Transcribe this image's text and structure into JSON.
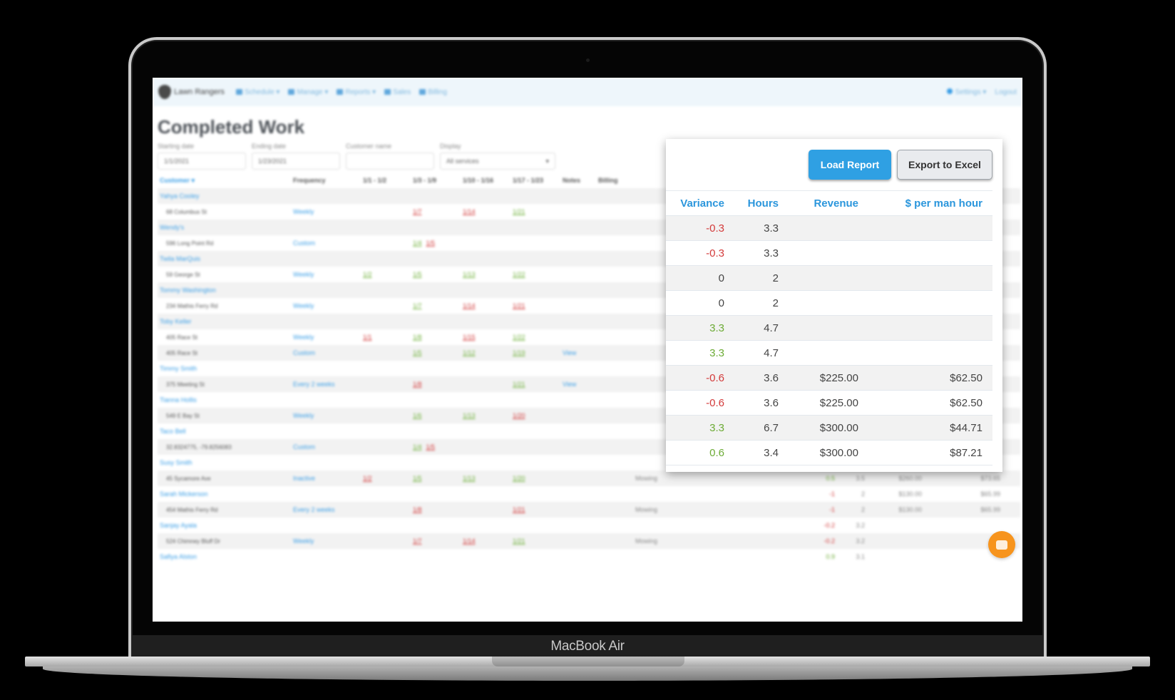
{
  "device": {
    "label": "MacBook Air"
  },
  "nav": {
    "brand": "Lawn Rangers",
    "items": [
      {
        "label": "Schedule ▾",
        "icon": "calendar-icon"
      },
      {
        "label": "Manage ▾",
        "icon": "user-icon"
      },
      {
        "label": "Reports ▾",
        "icon": "pie-chart-icon"
      },
      {
        "label": "Sales",
        "icon": "eye-icon"
      },
      {
        "label": "Billing",
        "icon": "credit-card-icon"
      }
    ],
    "settings": "Settings ▾",
    "logout": "Logout"
  },
  "page": {
    "title": "Completed Work",
    "filters": {
      "start_label": "Starting date",
      "start_value": "1/1/2021",
      "end_label": "Ending date",
      "end_value": "1/23/2021",
      "customer_label": "Customer name",
      "customer_value": "",
      "display_label": "Display",
      "display_value": "All services"
    }
  },
  "table": {
    "headers": {
      "customer": "Customer ▾",
      "frequency": "Frequency",
      "w1": "1/1 - 1/2",
      "w2": "1/3 - 1/9",
      "w3": "1/10 - 1/16",
      "w4": "1/17 - 1/23",
      "notes": "Notes",
      "billing": "Billing"
    },
    "rows": [
      {
        "type": "customer",
        "name": "Yahya Cooley"
      },
      {
        "type": "property",
        "addr": "68 Columbus St",
        "freq": "Weekly",
        "w2": "1/7",
        "w2c": "red",
        "w3": "1/14",
        "w3c": "red",
        "w4": "1/21",
        "w4c": "grn"
      },
      {
        "type": "customer",
        "name": "Wendy's"
      },
      {
        "type": "property",
        "addr": "596 Long Point Rd",
        "freq": "Custom",
        "w2": "1/4",
        "w2c": "grn",
        "w2b": "1/5",
        "w2bc": "red"
      },
      {
        "type": "customer",
        "name": "Twila MarQuis"
      },
      {
        "type": "property",
        "addr": "59 George St",
        "freq": "Weekly",
        "w1": "1/2",
        "w1c": "grn",
        "w2": "1/5",
        "w2c": "grn",
        "w3": "1/13",
        "w3c": "grn",
        "w4": "1/22",
        "w4c": "grn"
      },
      {
        "type": "customer",
        "name": "Tommy Washington"
      },
      {
        "type": "property",
        "addr": "234 Mathis Ferry Rd",
        "freq": "Weekly",
        "w2": "1/7",
        "w2c": "grn",
        "w3": "1/14",
        "w3c": "red",
        "w4": "1/21",
        "w4c": "red"
      },
      {
        "type": "customer",
        "name": "Toby Keller"
      },
      {
        "type": "property",
        "addr": "405 Race St",
        "freq": "Weekly",
        "w1": "1/1",
        "w1c": "red",
        "w2": "1/8",
        "w2c": "grn",
        "w3": "1/15",
        "w3c": "red",
        "w4": "1/22",
        "w4c": "grn"
      },
      {
        "type": "property",
        "addr": "405 Race St",
        "freq": "Custom",
        "w2": "1/5",
        "w2c": "grn",
        "w3": "1/12",
        "w3c": "grn",
        "w4": "1/19",
        "w4c": "grn",
        "notes": "View"
      },
      {
        "type": "customer",
        "name": "Timmy Smith"
      },
      {
        "type": "property",
        "addr": "375 Meeting St",
        "freq": "Every 2 weeks",
        "w2": "1/8",
        "w2c": "red",
        "w4": "1/21",
        "w4c": "grn",
        "notes": "View"
      },
      {
        "type": "customer",
        "name": "Tianna Hollis"
      },
      {
        "type": "property",
        "addr": "549 E Bay St",
        "freq": "Weekly",
        "w2": "1/6",
        "w2c": "grn",
        "w3": "1/13",
        "w3c": "grn",
        "w4": "1/20",
        "w4c": "red"
      },
      {
        "type": "customer",
        "name": "Taco Bell"
      },
      {
        "type": "property",
        "addr": "32.8324775, -79.8256083",
        "freq": "Custom",
        "w2": "1/4",
        "w2c": "grn",
        "w2b": "1/5",
        "w2bc": "red"
      },
      {
        "type": "customer",
        "name": "Susy Smith"
      },
      {
        "type": "property",
        "addr": "45 Sycamore Ave",
        "freq": "Inactive",
        "w1": "1/2",
        "w1c": "red",
        "w2": "1/5",
        "w2c": "grn",
        "w3": "1/13",
        "w3c": "grn",
        "w4": "1/20",
        "w4c": "grn",
        "svc": "Mowing",
        "var": "0.5",
        "varc": "pos",
        "hrs": "3.5",
        "rev": "$260.00",
        "pmh": "$73.65"
      },
      {
        "type": "customer",
        "name": "Sarah Mickerson",
        "var": "-1",
        "varc": "neg",
        "hrs": "2",
        "rev": "$130.00",
        "pmh": "$65.99"
      },
      {
        "type": "property",
        "addr": "454 Mathis Ferry Rd",
        "freq": "Every 2 weeks",
        "w2": "1/8",
        "w2c": "red",
        "w4": "1/21",
        "w4c": "red",
        "svc": "Mowing",
        "var": "-1",
        "varc": "neg",
        "hrs": "2",
        "rev": "$130.00",
        "pmh": "$65.99"
      },
      {
        "type": "customer",
        "name": "Sanjay Ayala",
        "var": "-0.2",
        "varc": "neg",
        "hrs": "3.2"
      },
      {
        "type": "property",
        "addr": "524 Chimney Bluff Dr",
        "freq": "Weekly",
        "w2": "1/7",
        "w2c": "red",
        "w3": "1/14",
        "w3c": "red",
        "w4": "1/21",
        "w4c": "grn",
        "svc": "Mowing",
        "var": "-0.2",
        "varc": "neg",
        "hrs": "3.2"
      },
      {
        "type": "customer",
        "name": "Safiya Alston",
        "var": "0.9",
        "varc": "pos",
        "hrs": "3.1"
      }
    ]
  },
  "popup": {
    "load_report": "Load Report",
    "export_excel": "Export to Excel",
    "headers": {
      "variance": "Variance",
      "hours": "Hours",
      "revenue": "Revenue",
      "per_man_hour": "$ per man hour"
    },
    "rows": [
      {
        "variance": "-0.3",
        "vc": "neg",
        "hours": "3.3",
        "revenue": "",
        "pmh": ""
      },
      {
        "variance": "-0.3",
        "vc": "neg",
        "hours": "3.3",
        "revenue": "",
        "pmh": ""
      },
      {
        "variance": "0",
        "vc": "zero",
        "hours": "2",
        "revenue": "",
        "pmh": ""
      },
      {
        "variance": "0",
        "vc": "zero",
        "hours": "2",
        "revenue": "",
        "pmh": ""
      },
      {
        "variance": "3.3",
        "vc": "pos",
        "hours": "4.7",
        "revenue": "",
        "pmh": ""
      },
      {
        "variance": "3.3",
        "vc": "pos",
        "hours": "4.7",
        "revenue": "",
        "pmh": ""
      },
      {
        "variance": "-0.6",
        "vc": "neg",
        "hours": "3.6",
        "revenue": "$225.00",
        "pmh": "$62.50"
      },
      {
        "variance": "-0.6",
        "vc": "neg",
        "hours": "3.6",
        "revenue": "$225.00",
        "pmh": "$62.50"
      },
      {
        "variance": "3.3",
        "vc": "pos",
        "hours": "6.7",
        "revenue": "$300.00",
        "pmh": "$44.71"
      },
      {
        "variance": "0.6",
        "vc": "pos",
        "hours": "3.4",
        "revenue": "$300.00",
        "pmh": "$87.21"
      }
    ]
  },
  "colors": {
    "accent": "#2fa0e3",
    "negative": "#d33a3a",
    "positive": "#6cab35",
    "chat": "#f7941d"
  }
}
